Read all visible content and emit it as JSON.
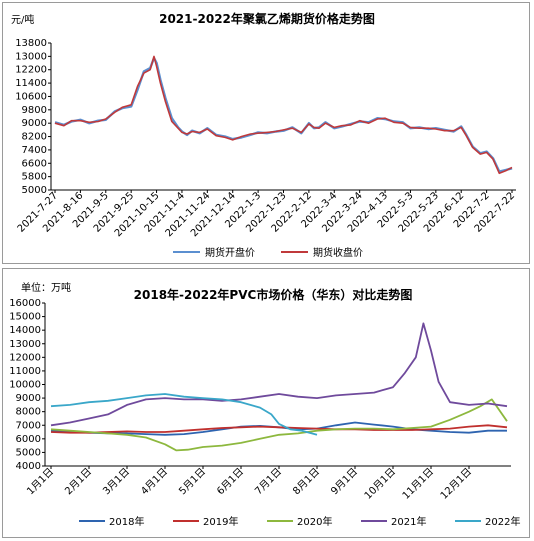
{
  "chart_data": [
    {
      "type": "line",
      "title": "2021-2022年聚氯乙烯期货价格走势图",
      "ylabel": "元/吨",
      "ylim": [
        5000,
        13800
      ],
      "yticks": [
        5000,
        5800,
        6600,
        7400,
        8200,
        9000,
        9800,
        10600,
        11400,
        12200,
        13000,
        13800
      ],
      "x_tick_labels": [
        "2021-7-27",
        "2021-8-16",
        "2021-9-5",
        "2021-9-25",
        "2021-10-15",
        "2021-11-4",
        "2021-11-24",
        "2021-12-14",
        "2022-1-3",
        "2022-1-23",
        "2022-2-12",
        "2022-3-4",
        "2022-3-24",
        "2022-4-13",
        "2022-5-3",
        "2022-5-23",
        "2022-6-12",
        "2022-7-2",
        "2022-7-22"
      ],
      "legend": "bottom",
      "grid": false,
      "series": [
        {
          "name": "期货开盘价",
          "color": "#5b8fd0",
          "x": [
            "2021-7-27",
            "2021-8-3",
            "2021-8-9",
            "2021-8-16",
            "2021-8-23",
            "2021-8-30",
            "2021-9-5",
            "2021-9-12",
            "2021-9-18",
            "2021-9-25",
            "2021-9-30",
            "2021-10-5",
            "2021-10-10",
            "2021-10-13",
            "2021-10-15",
            "2021-10-18",
            "2021-10-22",
            "2021-10-27",
            "2021-11-1",
            "2021-11-4",
            "2021-11-8",
            "2021-11-12",
            "2021-11-18",
            "2021-11-24",
            "2021-12-1",
            "2021-12-8",
            "2021-12-14",
            "2021-12-21",
            "2021-12-28",
            "2022-1-3",
            "2022-1-10",
            "2022-1-17",
            "2022-1-23",
            "2022-1-30",
            "2022-2-6",
            "2022-2-12",
            "2022-2-16",
            "2022-2-20",
            "2022-2-25",
            "2022-3-4",
            "2022-3-10",
            "2022-3-17",
            "2022-3-24",
            "2022-3-31",
            "2022-4-7",
            "2022-4-13",
            "2022-4-20",
            "2022-4-27",
            "2022-5-3",
            "2022-5-10",
            "2022-5-17",
            "2022-5-23",
            "2022-5-30",
            "2022-6-6",
            "2022-6-12",
            "2022-6-16",
            "2022-6-21",
            "2022-6-27",
            "2022-7-2",
            "2022-7-7",
            "2022-7-12",
            "2022-7-17",
            "2022-7-22"
          ],
          "values": [
            9050,
            8900,
            9100,
            9200,
            9000,
            9150,
            9200,
            9700,
            9900,
            10000,
            11000,
            12100,
            12300,
            12900,
            12600,
            11600,
            10500,
            9300,
            8750,
            8500,
            8300,
            8550,
            8400,
            8700,
            8300,
            8200,
            8050,
            8150,
            8300,
            8450,
            8400,
            8500,
            8550,
            8750,
            8400,
            9000,
            8700,
            8750,
            9050,
            8700,
            8800,
            8950,
            9100,
            9050,
            9300,
            9250,
            9100,
            9050,
            8700,
            8750,
            8650,
            8700,
            8600,
            8500,
            8800,
            8300,
            7600,
            7200,
            7300,
            6900,
            6100,
            6200,
            6300
          ]
        },
        {
          "name": "期货收盘价",
          "color": "#c0393b",
          "x": [
            "2021-7-27",
            "2021-8-3",
            "2021-8-9",
            "2021-8-16",
            "2021-8-23",
            "2021-8-30",
            "2021-9-5",
            "2021-9-12",
            "2021-9-18",
            "2021-9-25",
            "2021-9-30",
            "2021-10-5",
            "2021-10-10",
            "2021-10-13",
            "2021-10-15",
            "2021-10-18",
            "2021-10-22",
            "2021-10-27",
            "2021-11-1",
            "2021-11-4",
            "2021-11-8",
            "2021-11-12",
            "2021-11-18",
            "2021-11-24",
            "2021-12-1",
            "2021-12-8",
            "2021-12-14",
            "2021-12-21",
            "2021-12-28",
            "2022-1-3",
            "2022-1-10",
            "2022-1-17",
            "2022-1-23",
            "2022-1-30",
            "2022-2-6",
            "2022-2-12",
            "2022-2-16",
            "2022-2-20",
            "2022-2-25",
            "2022-3-4",
            "2022-3-10",
            "2022-3-17",
            "2022-3-24",
            "2022-3-31",
            "2022-4-7",
            "2022-4-13",
            "2022-4-20",
            "2022-4-27",
            "2022-5-3",
            "2022-5-10",
            "2022-5-17",
            "2022-5-23",
            "2022-5-30",
            "2022-6-6",
            "2022-6-12",
            "2022-6-16",
            "2022-6-21",
            "2022-6-27",
            "2022-7-2",
            "2022-7-7",
            "2022-7-12",
            "2022-7-17",
            "2022-7-22"
          ],
          "values": [
            9000,
            8850,
            9150,
            9150,
            9050,
            9100,
            9250,
            9650,
            9950,
            10100,
            11200,
            12000,
            12200,
            13000,
            12400,
            11400,
            10300,
            9100,
            8700,
            8450,
            8350,
            8500,
            8450,
            8650,
            8250,
            8150,
            8000,
            8200,
            8350,
            8400,
            8450,
            8500,
            8600,
            8700,
            8450,
            8950,
            8750,
            8700,
            9000,
            8750,
            8850,
            8900,
            9150,
            9000,
            9250,
            9300,
            9050,
            9000,
            8750,
            8700,
            8700,
            8650,
            8550,
            8550,
            8750,
            8250,
            7550,
            7150,
            7250,
            6850,
            6000,
            6150,
            6350
          ]
        }
      ]
    },
    {
      "type": "line",
      "title": "2018年-2022年PVC市场价格（华东）对比走势图",
      "ylabel": "单位：万吨",
      "ylim": [
        4000,
        16000
      ],
      "yticks": [
        4000,
        5000,
        6000,
        7000,
        8000,
        9000,
        10000,
        11000,
        12000,
        13000,
        14000,
        15000,
        16000
      ],
      "categories": [
        "1月1日",
        "2月1日",
        "3月1日",
        "4月1日",
        "5月1日",
        "6月1日",
        "7月1日",
        "8月1日",
        "9月1日",
        "10月1日",
        "11月1日",
        "12月1日"
      ],
      "legend": "bottom",
      "grid": false,
      "series": [
        {
          "name": "2018年",
          "color": "#2e64b0",
          "x": [
            0,
            0.5,
            1,
            1.5,
            2,
            2.5,
            3,
            3.5,
            4,
            4.5,
            5,
            5.5,
            6,
            6.5,
            7,
            7.5,
            8,
            8.5,
            9,
            9.5,
            10,
            10.5,
            11,
            11.5,
            12
          ],
          "values": [
            6600,
            6500,
            6450,
            6400,
            6400,
            6350,
            6300,
            6350,
            6500,
            6700,
            6900,
            6950,
            6850,
            6700,
            6750,
            7000,
            7200,
            7050,
            6900,
            6700,
            6600,
            6500,
            6450,
            6600,
            6600
          ]
        },
        {
          "name": "2019年",
          "color": "#c0302e",
          "x": [
            0,
            0.5,
            1,
            1.5,
            2,
            2.5,
            3,
            3.5,
            4,
            4.5,
            5,
            5.5,
            6,
            6.5,
            7,
            7.5,
            8,
            8.5,
            9,
            9.5,
            10,
            10.5,
            11,
            11.5,
            12
          ],
          "values": [
            6500,
            6450,
            6450,
            6500,
            6550,
            6500,
            6500,
            6600,
            6700,
            6800,
            6850,
            6900,
            6850,
            6800,
            6750,
            6700,
            6700,
            6650,
            6650,
            6650,
            6700,
            6750,
            6900,
            7000,
            6850
          ]
        },
        {
          "name": "2020年",
          "color": "#8db83e",
          "x": [
            0,
            0.5,
            1,
            1.5,
            2,
            2.5,
            3,
            3.3,
            3.6,
            4,
            4.5,
            5,
            5.5,
            6,
            6.5,
            7,
            7.5,
            8,
            8.5,
            9,
            9.5,
            10,
            10.5,
            11,
            11.3,
            11.6,
            12
          ],
          "values": [
            6700,
            6600,
            6500,
            6400,
            6300,
            6100,
            5600,
            5150,
            5200,
            5400,
            5500,
            5700,
            6000,
            6300,
            6400,
            6600,
            6700,
            6750,
            6750,
            6700,
            6800,
            6900,
            7400,
            8000,
            8400,
            8900,
            7300
          ]
        },
        {
          "name": "2021年",
          "color": "#6f4a9c",
          "x": [
            0,
            0.5,
            1,
            1.5,
            2,
            2.5,
            3,
            3.5,
            4,
            4.5,
            5,
            5.5,
            6,
            6.5,
            7,
            7.5,
            8,
            8.5,
            9,
            9.3,
            9.6,
            9.8,
            10,
            10.2,
            10.5,
            11,
            11.5,
            12
          ],
          "values": [
            7000,
            7200,
            7500,
            7800,
            8500,
            8900,
            9000,
            8900,
            8900,
            8800,
            8900,
            9100,
            9300,
            9100,
            9000,
            9200,
            9300,
            9400,
            9800,
            10800,
            12000,
            14500,
            12500,
            10200,
            8700,
            8500,
            8600,
            8400
          ]
        },
        {
          "name": "2022年",
          "color": "#3aa7c9",
          "x": [
            0,
            0.5,
            1,
            1.5,
            2,
            2.5,
            3,
            3.5,
            4,
            4.5,
            5,
            5.5,
            5.8,
            6,
            6.3,
            6.6,
            7
          ],
          "values": [
            8400,
            8500,
            8700,
            8800,
            9000,
            9200,
            9300,
            9100,
            9000,
            8900,
            8700,
            8300,
            7800,
            7100,
            6700,
            6600,
            6300
          ]
        }
      ]
    }
  ]
}
